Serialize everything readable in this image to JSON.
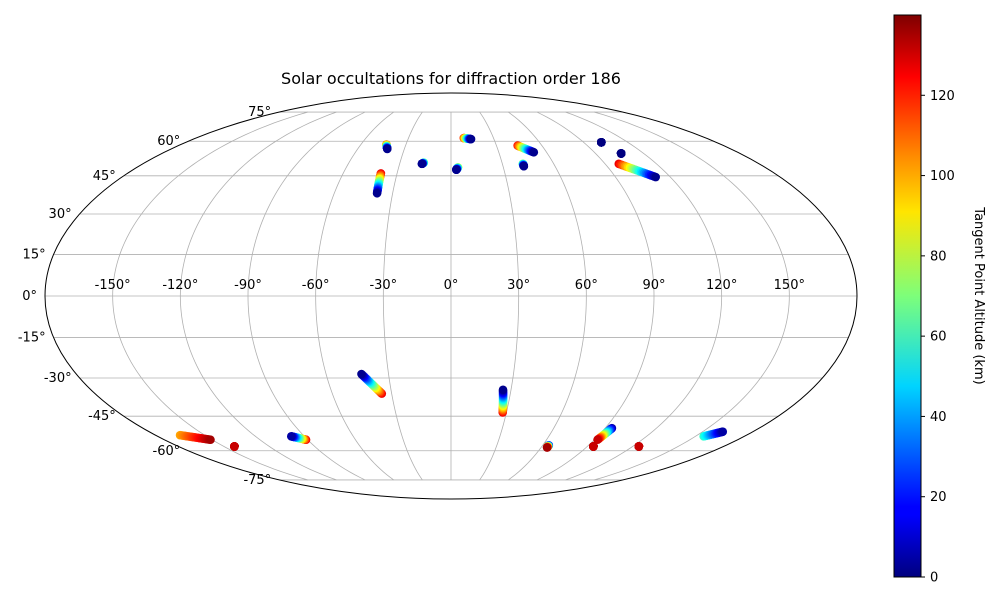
{
  "chart_data": {
    "type": "scatter",
    "projection": "mollweide",
    "title": "Solar occultations for diffraction order 186",
    "xlabel": "",
    "ylabel": "",
    "grid": true,
    "x_ticks": [
      -150,
      -120,
      -90,
      -60,
      -30,
      0,
      30,
      60,
      90,
      120,
      150
    ],
    "x_tick_labels": [
      "-150°",
      "-120°",
      "-90°",
      "-60°",
      "-30°",
      "0°",
      "30°",
      "60°",
      "90°",
      "120°",
      "150°"
    ],
    "y_ticks": [
      -75,
      -60,
      -45,
      -30,
      -15,
      0,
      15,
      30,
      45,
      60,
      75
    ],
    "y_tick_labels": [
      "-75°",
      "-60°",
      "-45°",
      "-30°",
      "-15°",
      "0°",
      "15°",
      "30°",
      "45°",
      "60°",
      "75°"
    ],
    "colormap": "jet",
    "colorbar": {
      "label": "Tangent Point Altitude (km)",
      "range": [
        0,
        140
      ],
      "ticks": [
        0,
        20,
        40,
        60,
        80,
        100,
        120
      ],
      "tick_labels": [
        "0",
        "20",
        "40",
        "60",
        "80",
        "100",
        "120"
      ]
    },
    "tracks": [
      {
        "start": {
          "lon": -43,
          "lat": 58.5,
          "alt": 110
        },
        "end": {
          "lon": -41,
          "lat": 56.5,
          "alt": 2
        }
      },
      {
        "start": {
          "lon": -39,
          "lat": 46,
          "alt": 125
        },
        "end": {
          "lon": -38,
          "lat": 38,
          "alt": 2
        }
      },
      {
        "start": {
          "lon": -16,
          "lat": 50.5,
          "alt": 70
        },
        "end": {
          "lon": -17,
          "lat": 50,
          "alt": 2
        }
      },
      {
        "start": {
          "lon": 4,
          "lat": 48.5,
          "alt": 80
        },
        "end": {
          "lon": 3,
          "lat": 47.5,
          "alt": 2
        }
      },
      {
        "start": {
          "lon": 9,
          "lat": 61.5,
          "alt": 115
        },
        "end": {
          "lon": 14,
          "lat": 61,
          "alt": 2
        }
      },
      {
        "start": {
          "lon": 42,
          "lat": 50,
          "alt": 70
        },
        "end": {
          "lon": 42,
          "lat": 49,
          "alt": 2
        }
      },
      {
        "start": {
          "lon": 44,
          "lat": 58,
          "alt": 120
        },
        "end": {
          "lon": 52,
          "lat": 55,
          "alt": 2
        }
      },
      {
        "start": {
          "lon": 98,
          "lat": 50,
          "alt": 125
        },
        "end": {
          "lon": 112,
          "lat": 44.5,
          "alt": 2
        }
      },
      {
        "start": {
          "lon": 102,
          "lat": 59.5,
          "alt": 5
        },
        "end": {
          "lon": 102,
          "lat": 59.5,
          "alt": 0
        }
      },
      {
        "start": {
          "lon": 106,
          "lat": 54.5,
          "alt": 5
        },
        "end": {
          "lon": 106,
          "lat": 54.5,
          "alt": 0
        }
      },
      {
        "start": {
          "lon": -35,
          "lat": -36,
          "alt": 125
        },
        "end": {
          "lon": -43,
          "lat": -28.5,
          "alt": 2
        }
      },
      {
        "start": {
          "lon": 28,
          "lat": -43.5,
          "alt": 125
        },
        "end": {
          "lon": 26,
          "lat": -34.5,
          "alt": 2
        }
      },
      {
        "start": {
          "lon": -91,
          "lat": -55,
          "alt": 125
        },
        "end": {
          "lon": -98,
          "lat": -53.5,
          "alt": 5
        }
      },
      {
        "start": {
          "lon": -165,
          "lat": -53,
          "alt": 100
        },
        "end": {
          "lon": -151,
          "lat": -55,
          "alt": 135
        }
      },
      {
        "start": {
          "lon": -143,
          "lat": -58,
          "alt": 135
        },
        "end": {
          "lon": -143,
          "lat": -58,
          "alt": 130
        }
      },
      {
        "start": {
          "lon": 64,
          "lat": -57.5,
          "alt": 10
        },
        "end": {
          "lon": 64,
          "lat": -58.5,
          "alt": 135
        }
      },
      {
        "start": {
          "lon": 94,
          "lat": -50,
          "alt": 5
        },
        "end": {
          "lon": 92,
          "lat": -55,
          "alt": 130
        }
      },
      {
        "start": {
          "lon": 94,
          "lat": -58,
          "alt": 135
        },
        "end": {
          "lon": 94,
          "lat": -58,
          "alt": 130
        }
      },
      {
        "start": {
          "lon": 124,
          "lat": -58,
          "alt": 135
        },
        "end": {
          "lon": 124,
          "lat": -58,
          "alt": 130
        }
      },
      {
        "start": {
          "lon": 155,
          "lat": -53.5,
          "alt": 60
        },
        "end": {
          "lon": 162,
          "lat": -51.5,
          "alt": 5
        }
      }
    ]
  }
}
